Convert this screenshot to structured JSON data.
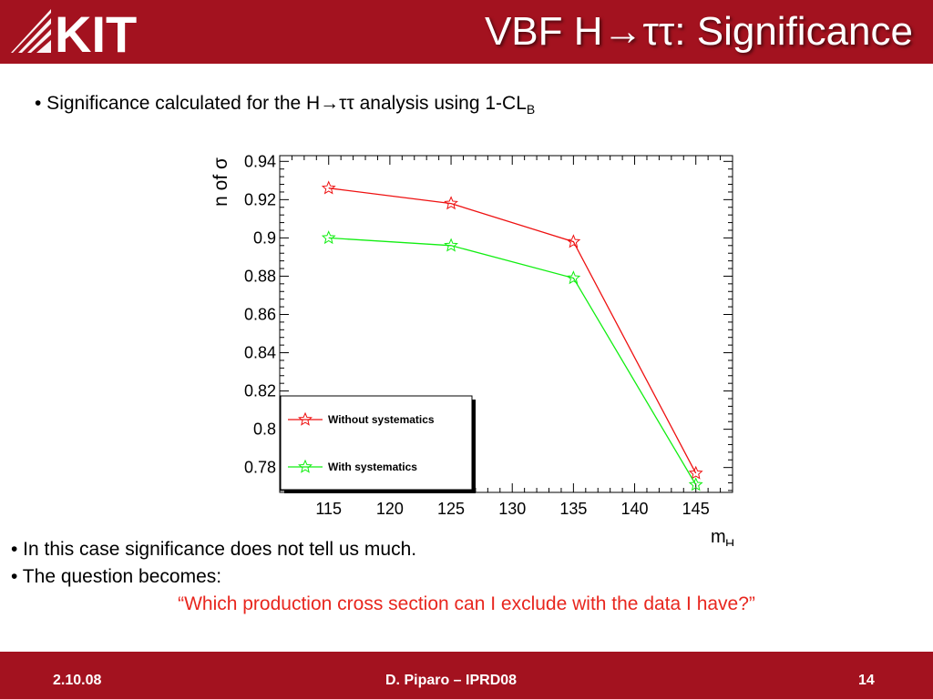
{
  "header": {
    "title": "VBF H→ττ: Significance",
    "logo_text": "KIT"
  },
  "intro": {
    "text": "• Significance calculated for the H→ττ analysis using 1-CL",
    "subscript": "B"
  },
  "chart_data": {
    "type": "line",
    "ylabel": "n of σ",
    "xlabel": "m",
    "xlabel_sub": "H",
    "xlim": [
      111,
      148
    ],
    "ylim": [
      0.767,
      0.943
    ],
    "xticks": [
      115,
      120,
      125,
      130,
      135,
      140,
      145
    ],
    "yticks": [
      0.78,
      0.8,
      0.82,
      0.84,
      0.86,
      0.88,
      0.9,
      0.92,
      0.94
    ],
    "ytick_labels": [
      "0.78",
      "0.8",
      "0.82",
      "0.84",
      "0.86",
      "0.88",
      "0.9",
      "0.92",
      "0.94"
    ],
    "x": [
      115,
      125,
      135,
      145
    ],
    "series": [
      {
        "name": "Without systematics",
        "color": "#ee1111",
        "values": [
          0.926,
          0.918,
          0.898,
          0.777
        ]
      },
      {
        "name": "With systematics",
        "color": "#11ee11",
        "values": [
          0.9,
          0.896,
          0.879,
          0.771
        ]
      }
    ],
    "legend": "bottom-left",
    "marker": "open-star",
    "grid": false
  },
  "bullets": [
    "• In this case significance does not tell us much.",
    "• The question becomes:"
  ],
  "quote": "“Which production cross section can I exclude with the data I have?”",
  "footer": {
    "date": "2.10.08",
    "author": "D. Piparo – IPRD08",
    "page": "14"
  },
  "colors": {
    "brand_red": "#a3121f",
    "quote_red": "#e8261e"
  }
}
